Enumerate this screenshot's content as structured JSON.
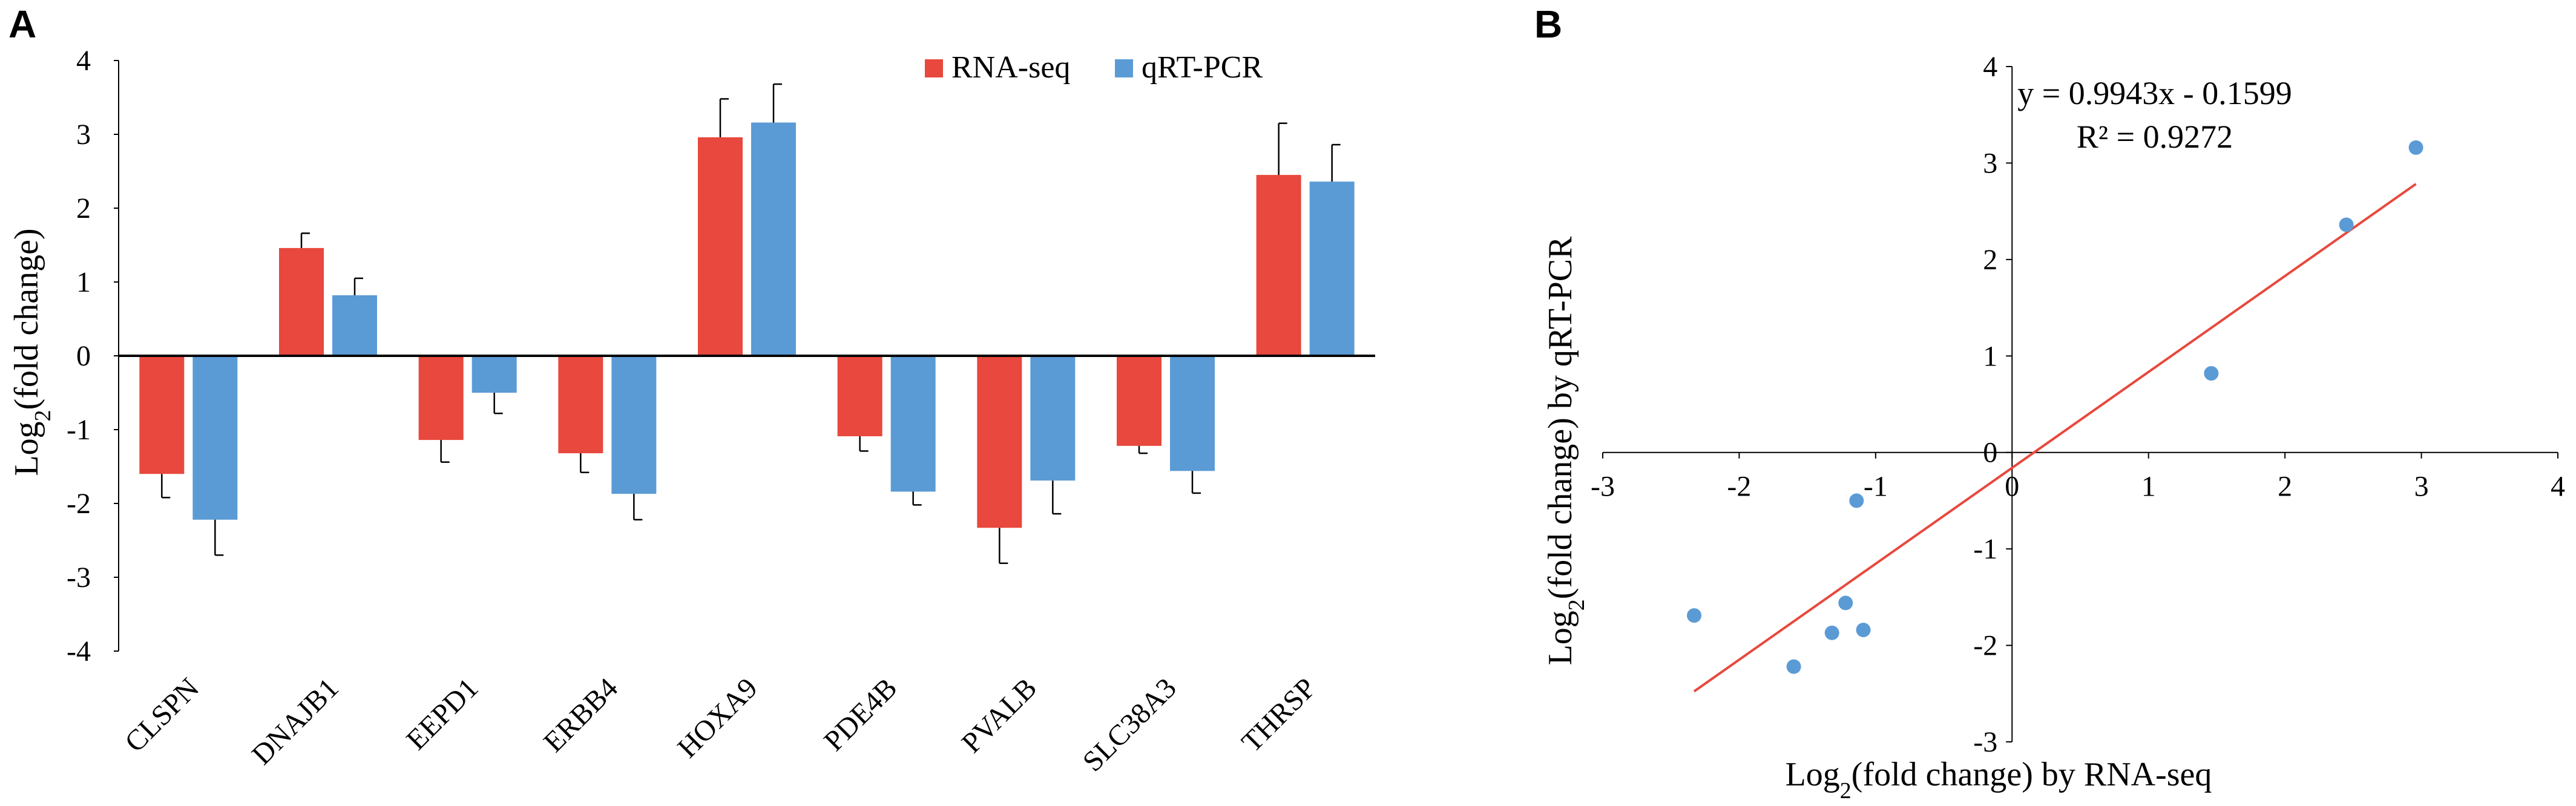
{
  "colors": {
    "rna_seq": "#E8483D",
    "qrt_pcr": "#5B9BD5",
    "fit_line": "#E8483D",
    "points": "#5B9BD5",
    "axis": "#000000"
  },
  "chart_data": [
    {
      "panel": "A",
      "type": "bar",
      "title": "",
      "xlabel": "",
      "ylabel": "Log2(fold change)",
      "ylabel_main": "Log",
      "ylabel_sub": "2",
      "ylabel_rest": "(fold change)",
      "ylim": [
        -4,
        4
      ],
      "yticks": [
        "4",
        "3",
        "2",
        "1",
        "0",
        "-1",
        "-2",
        "-3",
        "-4"
      ],
      "ytick_values": [
        4,
        3,
        2,
        1,
        0,
        -1,
        -2,
        -3,
        -4
      ],
      "categories": [
        "CLSPN",
        "DNAJB1",
        "EEPD1",
        "ERBB4",
        "HOXA9",
        "PDE4B",
        "PVALB",
        "SLC38A3",
        "THRSP"
      ],
      "legend": {
        "placement": "top-right",
        "entries": [
          "RNA-seq",
          "qRT-PCR"
        ]
      },
      "series": [
        {
          "name": "RNA-seq",
          "values": [
            -1.6,
            1.46,
            -1.14,
            -1.32,
            2.96,
            -1.09,
            -2.33,
            -1.22,
            2.45
          ],
          "errors": [
            0.32,
            0.2,
            0.3,
            0.26,
            0.52,
            0.2,
            0.48,
            0.1,
            0.7
          ]
        },
        {
          "name": "qRT-PCR",
          "values": [
            -2.22,
            0.82,
            -0.5,
            -1.87,
            3.16,
            -1.84,
            -1.69,
            -1.56,
            2.36
          ],
          "errors": [
            0.48,
            0.23,
            0.28,
            0.35,
            0.52,
            0.18,
            0.45,
            0.3,
            0.5
          ]
        }
      ]
    },
    {
      "panel": "B",
      "type": "scatter",
      "title": "",
      "xlabel": "Log2(fold change) by RNA-seq",
      "xlabel_main": "Log",
      "xlabel_sub": "2",
      "xlabel_rest": "(fold change) by RNA-seq",
      "ylabel": "Log2(fold change) by qRT-PCR",
      "ylabel_main": "Log",
      "ylabel_sub": "2",
      "ylabel_rest": "(fold change) by qRT-PCR",
      "xlim": [
        -3,
        4
      ],
      "ylim": [
        -3,
        4
      ],
      "xticks": [
        "-3",
        "-2",
        "-1",
        "0",
        "1",
        "2",
        "3",
        "4"
      ],
      "xtick_values": [
        -3,
        -2,
        -1,
        0,
        1,
        2,
        3,
        4
      ],
      "yticks": [
        "4",
        "3",
        "2",
        "1",
        "0",
        "-1",
        "-2",
        "-3"
      ],
      "ytick_values": [
        4,
        3,
        2,
        1,
        0,
        -1,
        -2,
        -3
      ],
      "points": [
        {
          "x": -1.6,
          "y": -2.22
        },
        {
          "x": 1.46,
          "y": 0.82
        },
        {
          "x": -1.14,
          "y": -0.5
        },
        {
          "x": -1.32,
          "y": -1.87
        },
        {
          "x": 2.96,
          "y": 3.16
        },
        {
          "x": -1.09,
          "y": -1.84
        },
        {
          "x": -2.33,
          "y": -1.69
        },
        {
          "x": -1.22,
          "y": -1.56
        },
        {
          "x": 2.45,
          "y": 2.36
        }
      ],
      "trendline": {
        "slope": 0.9943,
        "intercept": -0.1599,
        "x_range": [
          -2.33,
          2.96
        ]
      },
      "equation": "y = 0.9943x - 0.1599",
      "r_squared": "R² = 0.9272"
    }
  ]
}
